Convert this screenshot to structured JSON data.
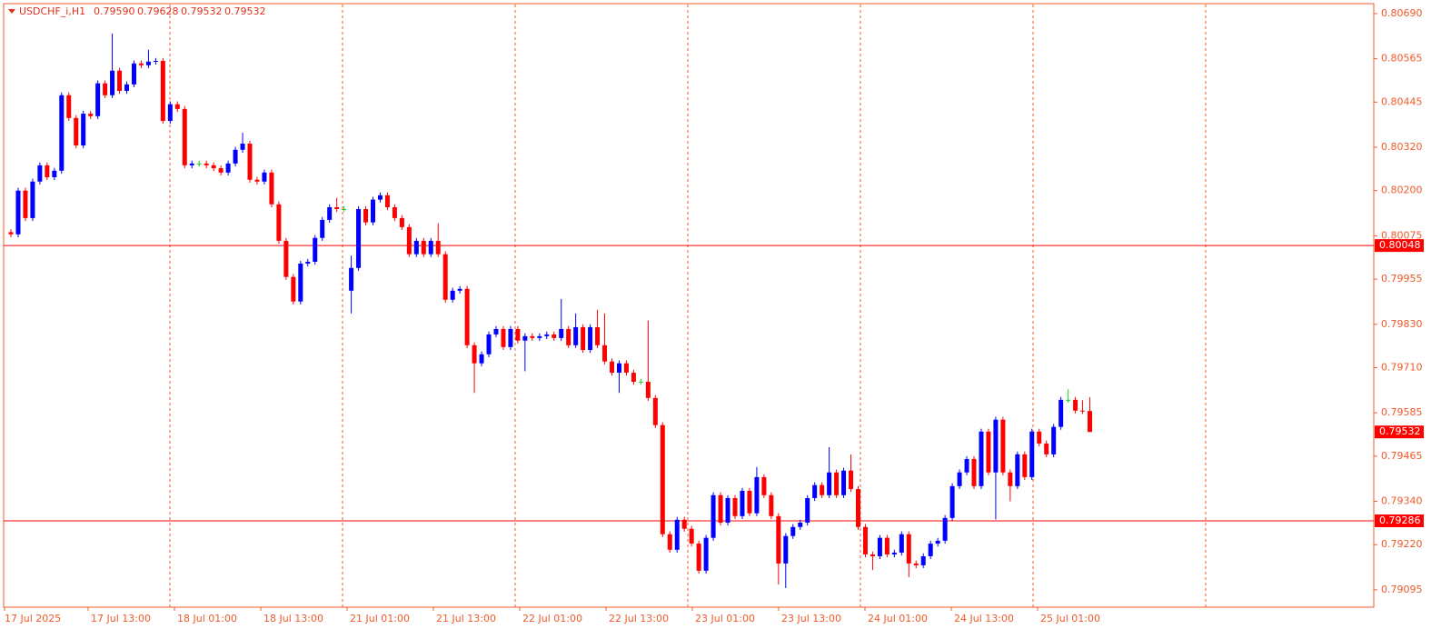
{
  "chart_data": {
    "type": "candlestick",
    "title": "USDCHF_i,H1",
    "header_ohlc": [
      {
        "value": 0.7959,
        "label": "0.79590"
      },
      {
        "value": 0.79628,
        "label": "0.79628"
      },
      {
        "value": 0.79532,
        "label": "0.79532"
      },
      {
        "value": 0.79532,
        "label": "0.79532"
      }
    ],
    "up_color": "#0000ff",
    "down_color": "#ff0000",
    "axis_color": "#f05a28",
    "ylim": [
      0.79047,
      0.80715
    ],
    "yticks": [
      {
        "value": 0.8069,
        "label": "0.80690"
      },
      {
        "value": 0.80565,
        "label": "0.80565"
      },
      {
        "value": 0.80445,
        "label": "0.80445"
      },
      {
        "value": 0.8032,
        "label": "0.80320"
      },
      {
        "value": 0.802,
        "label": "0.80200"
      },
      {
        "value": 0.80075,
        "label": "0.80075"
      },
      {
        "value": 0.79955,
        "label": "0.79955"
      },
      {
        "value": 0.7983,
        "label": "0.79830"
      },
      {
        "value": 0.7971,
        "label": "0.79710"
      },
      {
        "value": 0.79585,
        "label": "0.79585"
      },
      {
        "value": 0.79465,
        "label": "0.79465"
      },
      {
        "value": 0.7934,
        "label": "0.79340"
      },
      {
        "value": 0.7922,
        "label": "0.79220"
      },
      {
        "value": 0.79095,
        "label": "0.79095"
      }
    ],
    "levels": [
      {
        "value": 0.80048,
        "label": "0.80048"
      },
      {
        "value": 0.79286,
        "label": "0.79286"
      }
    ],
    "bid": {
      "value": 0.79532,
      "label": "0.79532"
    },
    "xlabels": [
      "17 Jul 2025",
      "17 Jul 13:00",
      "18 Jul 01:00",
      "18 Jul 13:00",
      "21 Jul 01:00",
      "21 Jul 13:00",
      "22 Jul 01:00",
      "22 Jul 13:00",
      "23 Jul 01:00",
      "23 Jul 13:00",
      "24 Jul 01:00",
      "24 Jul 13:00",
      "25 Jul 01:00"
    ],
    "candles": [
      [
        0.80085,
        0.80093,
        0.80071,
        0.80079
      ],
      [
        0.80079,
        0.80208,
        0.80071,
        0.802
      ],
      [
        0.802,
        0.80208,
        0.80116,
        0.80124
      ],
      [
        0.80124,
        0.80233,
        0.80116,
        0.80225
      ],
      [
        0.80225,
        0.80278,
        0.80217,
        0.8027
      ],
      [
        0.8027,
        0.80278,
        0.80229,
        0.80237
      ],
      [
        0.80237,
        0.80263,
        0.80229,
        0.80255
      ],
      [
        0.80255,
        0.80472,
        0.80247,
        0.80464
      ],
      [
        0.80464,
        0.80472,
        0.80393,
        0.80401
      ],
      [
        0.80401,
        0.80409,
        0.80317,
        0.80325
      ],
      [
        0.80325,
        0.80421,
        0.80317,
        0.80413
      ],
      [
        0.80413,
        0.80421,
        0.80398,
        0.80406
      ],
      [
        0.80406,
        0.80505,
        0.80398,
        0.80497
      ],
      [
        0.80497,
        0.80505,
        0.80456,
        0.80464
      ],
      [
        0.80464,
        0.80635,
        0.80456,
        0.80532
      ],
      [
        0.80532,
        0.8054,
        0.80468,
        0.80476
      ],
      [
        0.80476,
        0.80502,
        0.80468,
        0.80494
      ],
      [
        0.80494,
        0.8056,
        0.80486,
        0.80552
      ],
      [
        0.80552,
        0.8056,
        0.80539,
        0.80547
      ],
      [
        0.80547,
        0.8059,
        0.80539,
        0.80557
      ],
      [
        0.80557,
        0.80567,
        0.80549,
        0.80559
      ],
      [
        0.80559,
        0.80567,
        0.80385,
        0.80393
      ],
      [
        0.80393,
        0.80447,
        0.80385,
        0.80439
      ],
      [
        0.80439,
        0.80447,
        0.80418,
        0.80426
      ],
      [
        0.80426,
        0.80434,
        0.80262,
        0.8027
      ],
      [
        0.8027,
        0.80283,
        0.80262,
        0.80275
      ],
      [
        0.80275,
        0.80283,
        0.80267,
        0.80275
      ],
      [
        0.80275,
        0.80283,
        0.80262,
        0.8027
      ],
      [
        0.8027,
        0.80278,
        0.80254,
        0.80262
      ],
      [
        0.80262,
        0.8027,
        0.80242,
        0.8025
      ],
      [
        0.8025,
        0.80283,
        0.80242,
        0.80275
      ],
      [
        0.80275,
        0.80321,
        0.80267,
        0.80313
      ],
      [
        0.80313,
        0.8036,
        0.80305,
        0.8033
      ],
      [
        0.8033,
        0.80338,
        0.80222,
        0.8023
      ],
      [
        0.8023,
        0.80238,
        0.80217,
        0.80225
      ],
      [
        0.80225,
        0.80258,
        0.80217,
        0.8025
      ],
      [
        0.8025,
        0.80258,
        0.80154,
        0.80162
      ],
      [
        0.80162,
        0.8017,
        0.80053,
        0.80061
      ],
      [
        0.80061,
        0.80069,
        0.79953,
        0.79961
      ],
      [
        0.79961,
        0.79969,
        0.79885,
        0.79893
      ],
      [
        0.79893,
        0.80006,
        0.79885,
        0.79998
      ],
      [
        0.79998,
        0.80011,
        0.7999,
        0.80003
      ],
      [
        0.80003,
        0.80077,
        0.79995,
        0.80069
      ],
      [
        0.80069,
        0.80127,
        0.80061,
        0.80119
      ],
      [
        0.80119,
        0.80162,
        0.80111,
        0.80154
      ],
      [
        0.80154,
        0.8018,
        0.80141,
        0.80149
      ],
      [
        0.80149,
        0.80157,
        0.80141,
        0.80149
      ],
      [
        0.79923,
        0.8002,
        0.7986,
        0.79986
      ],
      [
        0.79986,
        0.80157,
        0.79978,
        0.80149
      ],
      [
        0.80149,
        0.80157,
        0.80104,
        0.80112
      ],
      [
        0.80112,
        0.80183,
        0.80104,
        0.80175
      ],
      [
        0.80175,
        0.80195,
        0.80167,
        0.80187
      ],
      [
        0.80187,
        0.80195,
        0.80146,
        0.80154
      ],
      [
        0.80154,
        0.80162,
        0.80116,
        0.80124
      ],
      [
        0.80124,
        0.80132,
        0.80091,
        0.80099
      ],
      [
        0.80099,
        0.80107,
        0.80016,
        0.80024
      ],
      [
        0.80024,
        0.80069,
        0.80016,
        0.80061
      ],
      [
        0.80061,
        0.80069,
        0.80016,
        0.80024
      ],
      [
        0.80024,
        0.80069,
        0.80016,
        0.80061
      ],
      [
        0.80061,
        0.8011,
        0.80016,
        0.80024
      ],
      [
        0.80024,
        0.80032,
        0.7989,
        0.79898
      ],
      [
        0.79898,
        0.79931,
        0.7989,
        0.79923
      ],
      [
        0.79923,
        0.79936,
        0.79915,
        0.79928
      ],
      [
        0.79928,
        0.79936,
        0.79764,
        0.79772
      ],
      [
        0.79772,
        0.7978,
        0.7964,
        0.79722
      ],
      [
        0.79722,
        0.79755,
        0.79714,
        0.79747
      ],
      [
        0.79747,
        0.7981,
        0.79739,
        0.79802
      ],
      [
        0.79802,
        0.79825,
        0.79794,
        0.79817
      ],
      [
        0.79817,
        0.79825,
        0.79759,
        0.79767
      ],
      [
        0.79767,
        0.79825,
        0.79759,
        0.79817
      ],
      [
        0.79817,
        0.79825,
        0.79777,
        0.79785
      ],
      [
        0.79785,
        0.79805,
        0.797,
        0.79797
      ],
      [
        0.79797,
        0.79805,
        0.79784,
        0.79792
      ],
      [
        0.79792,
        0.79805,
        0.79784,
        0.79797
      ],
      [
        0.79797,
        0.7981,
        0.79789,
        0.79802
      ],
      [
        0.79802,
        0.7981,
        0.79784,
        0.79792
      ],
      [
        0.79792,
        0.799,
        0.79784,
        0.79817
      ],
      [
        0.79817,
        0.79825,
        0.79764,
        0.79772
      ],
      [
        0.79772,
        0.7986,
        0.79764,
        0.79822
      ],
      [
        0.79822,
        0.7983,
        0.79751,
        0.79759
      ],
      [
        0.79759,
        0.7983,
        0.79751,
        0.79822
      ],
      [
        0.79822,
        0.7987,
        0.79764,
        0.79772
      ],
      [
        0.79772,
        0.7986,
        0.79719,
        0.79727
      ],
      [
        0.79727,
        0.79735,
        0.79688,
        0.79696
      ],
      [
        0.79696,
        0.7973,
        0.7964,
        0.79722
      ],
      [
        0.79722,
        0.7973,
        0.79688,
        0.79696
      ],
      [
        0.79696,
        0.79704,
        0.79663,
        0.79671
      ],
      [
        0.79671,
        0.79679,
        0.79663,
        0.79671
      ],
      [
        0.79671,
        0.7984,
        0.79618,
        0.79626
      ],
      [
        0.79626,
        0.79634,
        0.79543,
        0.79551
      ],
      [
        0.79551,
        0.79559,
        0.79241,
        0.79249
      ],
      [
        0.79249,
        0.79257,
        0.79198,
        0.79206
      ],
      [
        0.79206,
        0.79297,
        0.79198,
        0.79289
      ],
      [
        0.79289,
        0.79297,
        0.79256,
        0.79264
      ],
      [
        0.79264,
        0.79272,
        0.79215,
        0.79223
      ],
      [
        0.79223,
        0.79231,
        0.7914,
        0.79148
      ],
      [
        0.79148,
        0.79247,
        0.7914,
        0.79239
      ],
      [
        0.79239,
        0.79365,
        0.79231,
        0.79357
      ],
      [
        0.79357,
        0.79365,
        0.79273,
        0.79281
      ],
      [
        0.79281,
        0.79357,
        0.79273,
        0.79349
      ],
      [
        0.79349,
        0.79357,
        0.79291,
        0.79299
      ],
      [
        0.79299,
        0.79377,
        0.79291,
        0.79369
      ],
      [
        0.79369,
        0.79377,
        0.79299,
        0.79307
      ],
      [
        0.79307,
        0.79435,
        0.79299,
        0.79407
      ],
      [
        0.79407,
        0.79415,
        0.79349,
        0.79357
      ],
      [
        0.79357,
        0.79365,
        0.79291,
        0.79299
      ],
      [
        0.79299,
        0.79307,
        0.7911,
        0.79168
      ],
      [
        0.79168,
        0.79252,
        0.791,
        0.79244
      ],
      [
        0.79244,
        0.79277,
        0.79236,
        0.79269
      ],
      [
        0.79269,
        0.79289,
        0.79261,
        0.79281
      ],
      [
        0.79281,
        0.79357,
        0.79273,
        0.79349
      ],
      [
        0.79349,
        0.79393,
        0.79341,
        0.79385
      ],
      [
        0.79385,
        0.79393,
        0.79349,
        0.79357
      ],
      [
        0.79357,
        0.7949,
        0.79349,
        0.7942
      ],
      [
        0.7942,
        0.79428,
        0.79349,
        0.79357
      ],
      [
        0.79357,
        0.79433,
        0.79349,
        0.79425
      ],
      [
        0.79425,
        0.7947,
        0.79366,
        0.79374
      ],
      [
        0.79374,
        0.79382,
        0.79261,
        0.79269
      ],
      [
        0.79269,
        0.79277,
        0.79185,
        0.79193
      ],
      [
        0.79193,
        0.79201,
        0.7915,
        0.79188
      ],
      [
        0.79188,
        0.79247,
        0.7918,
        0.79239
      ],
      [
        0.79239,
        0.79247,
        0.79185,
        0.79193
      ],
      [
        0.79193,
        0.79206,
        0.79185,
        0.79198
      ],
      [
        0.79198,
        0.79257,
        0.7919,
        0.79249
      ],
      [
        0.79249,
        0.79257,
        0.7913,
        0.79168
      ],
      [
        0.79168,
        0.79176,
        0.79155,
        0.79163
      ],
      [
        0.79163,
        0.79196,
        0.79155,
        0.79188
      ],
      [
        0.79188,
        0.79231,
        0.7918,
        0.79223
      ],
      [
        0.79223,
        0.79239,
        0.79215,
        0.79231
      ],
      [
        0.79231,
        0.79302,
        0.79223,
        0.79294
      ],
      [
        0.79294,
        0.7939,
        0.79286,
        0.79382
      ],
      [
        0.79382,
        0.79428,
        0.79374,
        0.7942
      ],
      [
        0.7942,
        0.79465,
        0.79412,
        0.79457
      ],
      [
        0.79457,
        0.79465,
        0.79374,
        0.79382
      ],
      [
        0.79382,
        0.79541,
        0.79374,
        0.79533
      ],
      [
        0.79533,
        0.79541,
        0.79412,
        0.7942
      ],
      [
        0.7942,
        0.79574,
        0.7929,
        0.79566
      ],
      [
        0.79566,
        0.79574,
        0.79412,
        0.7942
      ],
      [
        0.7942,
        0.79428,
        0.7934,
        0.79382
      ],
      [
        0.79382,
        0.79478,
        0.79374,
        0.7947
      ],
      [
        0.7947,
        0.79478,
        0.79399,
        0.79407
      ],
      [
        0.79407,
        0.79541,
        0.79399,
        0.79533
      ],
      [
        0.79533,
        0.79541,
        0.79492,
        0.795
      ],
      [
        0.795,
        0.79508,
        0.79462,
        0.7947
      ],
      [
        0.7947,
        0.79554,
        0.79462,
        0.79546
      ],
      [
        0.79546,
        0.79629,
        0.79538,
        0.79621
      ],
      [
        0.79621,
        0.7965,
        0.79613,
        0.79621
      ],
      [
        0.79621,
        0.79629,
        0.79583,
        0.79591
      ],
      [
        0.79591,
        0.7962,
        0.79582,
        0.7959
      ],
      [
        0.7959,
        0.79628,
        0.79532,
        0.79532
      ]
    ]
  }
}
